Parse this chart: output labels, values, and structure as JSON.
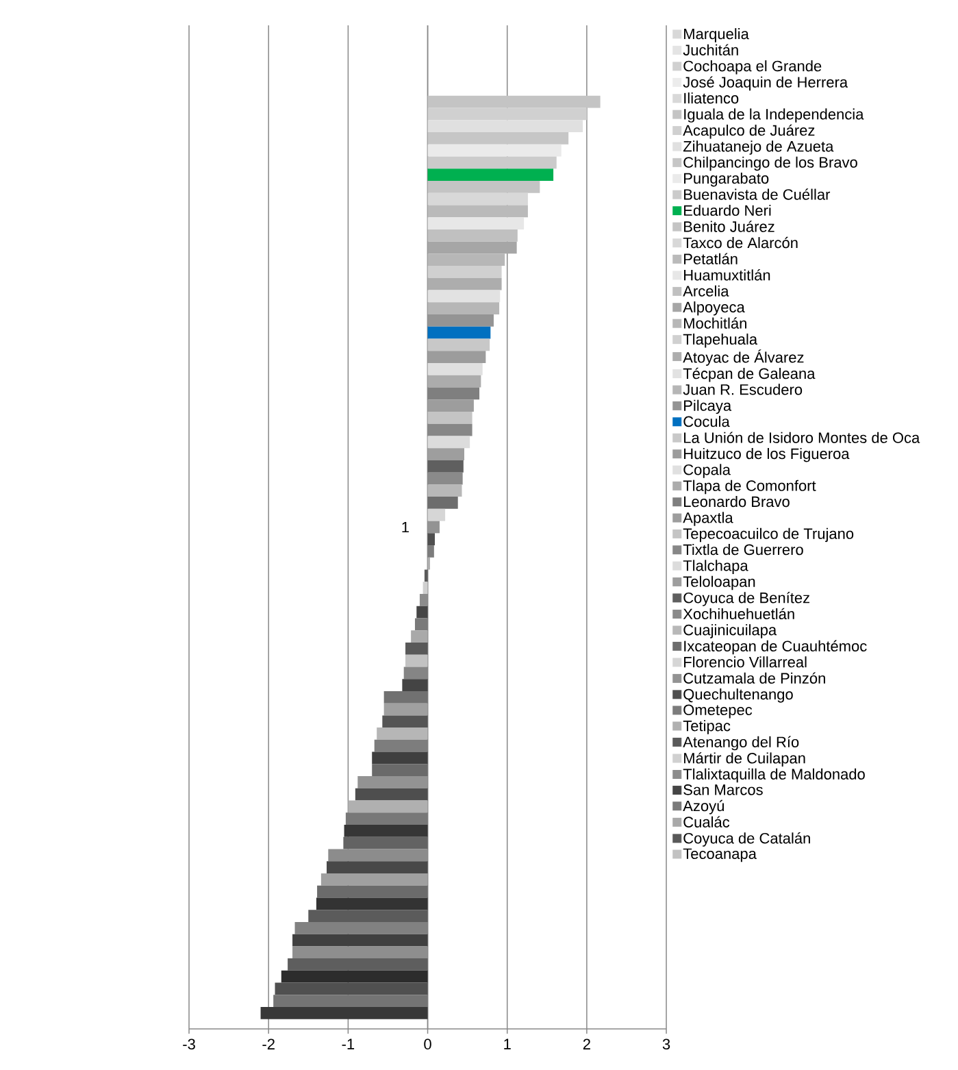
{
  "chart_data": {
    "type": "bar",
    "orientation": "horizontal",
    "categories": [
      "1"
    ],
    "xlim": [
      -3,
      3
    ],
    "xticks": [
      -3,
      -2,
      -1,
      0,
      1,
      2,
      3
    ],
    "grid": "x",
    "legend": "right",
    "series": [
      {
        "name": "Marquelia",
        "color": "#d8d8d8",
        "values": [
          null
        ]
      },
      {
        "name": "Juchitán",
        "color": "#e4e4e4",
        "values": [
          null
        ]
      },
      {
        "name": "Cochoapa el Grande",
        "color": "#d0d0d0",
        "values": [
          null
        ]
      },
      {
        "name": "José Joaquin de Herrera",
        "color": "#ececec",
        "values": [
          null
        ]
      },
      {
        "name": "Iliatenco",
        "color": "#d8d8d8",
        "values": [
          null
        ]
      },
      {
        "name": "Iguala de la Independencia",
        "color": "#c4c4c4",
        "values": [
          2.17
        ]
      },
      {
        "name": "Acapulco de Juárez",
        "color": "#d0d0d0",
        "values": [
          2.0
        ]
      },
      {
        "name": "Zihuatanejo de Azueta",
        "color": "#e0e0e0",
        "values": [
          1.95
        ]
      },
      {
        "name": "Chilpancingo de los Bravo",
        "color": "#c6c6c6",
        "values": [
          1.77
        ]
      },
      {
        "name": "Pungarabato",
        "color": "#eaeaea",
        "values": [
          1.68
        ]
      },
      {
        "name": "Buenavista de Cuéllar",
        "color": "#cbcbcb",
        "values": [
          1.62
        ]
      },
      {
        "name": "Eduardo Neri",
        "color": "#00b050",
        "values": [
          1.58
        ]
      },
      {
        "name": "Benito Juárez",
        "color": "#c4c4c4",
        "values": [
          1.41
        ]
      },
      {
        "name": "Taxco de Alarcón",
        "color": "#d8d8d8",
        "values": [
          1.26
        ]
      },
      {
        "name": "Petatlán",
        "color": "#bababa",
        "values": [
          1.26
        ]
      },
      {
        "name": "Huamuxtitlán",
        "color": "#e7e7e7",
        "values": [
          1.21
        ]
      },
      {
        "name": "Arcelia",
        "color": "#c0c0c0",
        "values": [
          1.13
        ]
      },
      {
        "name": "Alpoyeca",
        "color": "#a6a6a6",
        "values": [
          1.12
        ]
      },
      {
        "name": "Mochitlán",
        "color": "#b7b7b7",
        "values": [
          0.97
        ]
      },
      {
        "name": "Tlapehuala",
        "color": "#d0d0d0",
        "values": [
          0.93
        ]
      },
      {
        "name": "Atoyac de Álvarez",
        "color": "#adadad",
        "values": [
          0.93
        ]
      },
      {
        "name": "Técpan de Galeana",
        "color": "#e2e2e2",
        "values": [
          0.91
        ]
      },
      {
        "name": "Juan R. Escudero",
        "color": "#b6b6b6",
        "values": [
          0.9
        ]
      },
      {
        "name": "Pilcaya",
        "color": "#949494",
        "values": [
          0.83
        ]
      },
      {
        "name": "Cocula",
        "color": "#0070c0",
        "values": [
          0.79
        ]
      },
      {
        "name": "La Unión de Isidoro Montes de Oca",
        "color": "#c8c8c8",
        "values": [
          0.78
        ]
      },
      {
        "name": "Huitzuco de los Figueroa",
        "color": "#9c9c9c",
        "values": [
          0.73
        ]
      },
      {
        "name": "Copala",
        "color": "#e0e0e0",
        "values": [
          0.69
        ]
      },
      {
        "name": "Tlapa de Comonfort",
        "color": "#acacac",
        "values": [
          0.67
        ]
      },
      {
        "name": "Leonardo Bravo",
        "color": "#7f7f7f",
        "values": [
          0.65
        ]
      },
      {
        "name": "Apaxtla",
        "color": "#9d9d9d",
        "values": [
          0.58
        ]
      },
      {
        "name": "Tepecoacuilco de Trujano",
        "color": "#c4c4c4",
        "values": [
          0.56
        ]
      },
      {
        "name": "Tixtla de Guerrero",
        "color": "#878787",
        "values": [
          0.56
        ]
      },
      {
        "name": "Tlalchapa",
        "color": "#dcdcdc",
        "values": [
          0.53
        ]
      },
      {
        "name": "Teloloapan",
        "color": "#9e9e9e",
        "values": [
          0.46
        ]
      },
      {
        "name": "Coyuca de Benítez",
        "color": "#5f5f5f",
        "values": [
          0.45
        ]
      },
      {
        "name": "Xochihuehuetlán",
        "color": "#8a8a8a",
        "values": [
          0.44
        ]
      },
      {
        "name": "Cuajinicuilapa",
        "color": "#b8b8b8",
        "values": [
          0.43
        ]
      },
      {
        "name": "Ixcateopan de Cuauhtémoc",
        "color": "#6d6d6d",
        "values": [
          0.38
        ]
      },
      {
        "name": "Florencio Villarreal",
        "color": "#d6d6d6",
        "values": [
          0.22
        ]
      },
      {
        "name": "Cutzamala de Pinzón",
        "color": "#939393",
        "values": [
          0.15
        ]
      },
      {
        "name": "Quechultenango",
        "color": "#4f4f4f",
        "values": [
          0.09
        ]
      },
      {
        "name": "Ometepec",
        "color": "#7c7c7c",
        "values": [
          0.08
        ]
      },
      {
        "name": "Tetipac",
        "color": "#b0b0b0",
        "values": [
          0.03
        ]
      },
      {
        "name": "Atenango del Río",
        "color": "#5a5a5a",
        "values": [
          -0.04
        ]
      },
      {
        "name": "Mártir de Cuilapan",
        "color": "#d0d0d0",
        "values": [
          -0.06
        ]
      },
      {
        "name": "Tlalixtaquilla de Maldonado",
        "color": "#8c8c8c",
        "values": [
          -0.1
        ]
      },
      {
        "name": "San Marcos",
        "color": "#454545",
        "values": [
          -0.14
        ]
      },
      {
        "name": "Azoyú",
        "color": "#7a7a7a",
        "values": [
          -0.16
        ]
      },
      {
        "name": "Cualác",
        "color": "#a9a9a9",
        "values": [
          -0.21
        ]
      },
      {
        "name": "Coyuca de Catalán",
        "color": "#595959",
        "values": [
          -0.28
        ]
      },
      {
        "name": "Tecoanapa",
        "color": "#c2c2c2",
        "values": [
          -0.28
        ]
      },
      {
        "color": "#858585",
        "values": [
          -0.3
        ]
      },
      {
        "color": "#444444",
        "values": [
          -0.32
        ]
      },
      {
        "color": "#717171",
        "values": [
          -0.55
        ]
      },
      {
        "color": "#a0a0a0",
        "values": [
          -0.55
        ]
      },
      {
        "color": "#555555",
        "values": [
          -0.57
        ]
      },
      {
        "color": "#b6b6b6",
        "values": [
          -0.64
        ]
      },
      {
        "color": "#7d7d7d",
        "values": [
          -0.67
        ]
      },
      {
        "color": "#3f3f3f",
        "values": [
          -0.7
        ]
      },
      {
        "color": "#6a6a6a",
        "values": [
          -0.7
        ]
      },
      {
        "color": "#939393",
        "values": [
          -0.88
        ]
      },
      {
        "color": "#4e4e4e",
        "values": [
          -0.91
        ]
      },
      {
        "color": "#b0b0b0",
        "values": [
          -1.0
        ]
      },
      {
        "color": "#787878",
        "values": [
          -1.03
        ]
      },
      {
        "color": "#363636",
        "values": [
          -1.05
        ]
      },
      {
        "color": "#636363",
        "values": [
          -1.06
        ]
      },
      {
        "color": "#8c8c8c",
        "values": [
          -1.25
        ]
      },
      {
        "color": "#484848",
        "values": [
          -1.27
        ]
      },
      {
        "color": "#a0a0a0",
        "values": [
          -1.34
        ]
      },
      {
        "color": "#6b6b6b",
        "values": [
          -1.39
        ]
      },
      {
        "color": "#333333",
        "values": [
          -1.4
        ]
      },
      {
        "color": "#5b5b5b",
        "values": [
          -1.5
        ]
      },
      {
        "color": "#818181",
        "values": [
          -1.67
        ]
      },
      {
        "color": "#404040",
        "values": [
          -1.7
        ]
      },
      {
        "color": "#8e8e8e",
        "values": [
          -1.7
        ]
      },
      {
        "color": "#5e5e5e",
        "values": [
          -1.76
        ]
      },
      {
        "color": "#2c2c2c",
        "values": [
          -1.84
        ]
      },
      {
        "color": "#505050",
        "values": [
          -1.92
        ]
      },
      {
        "color": "#747474",
        "values": [
          -1.94
        ]
      },
      {
        "color": "#383838",
        "values": [
          -2.1
        ]
      }
    ]
  }
}
